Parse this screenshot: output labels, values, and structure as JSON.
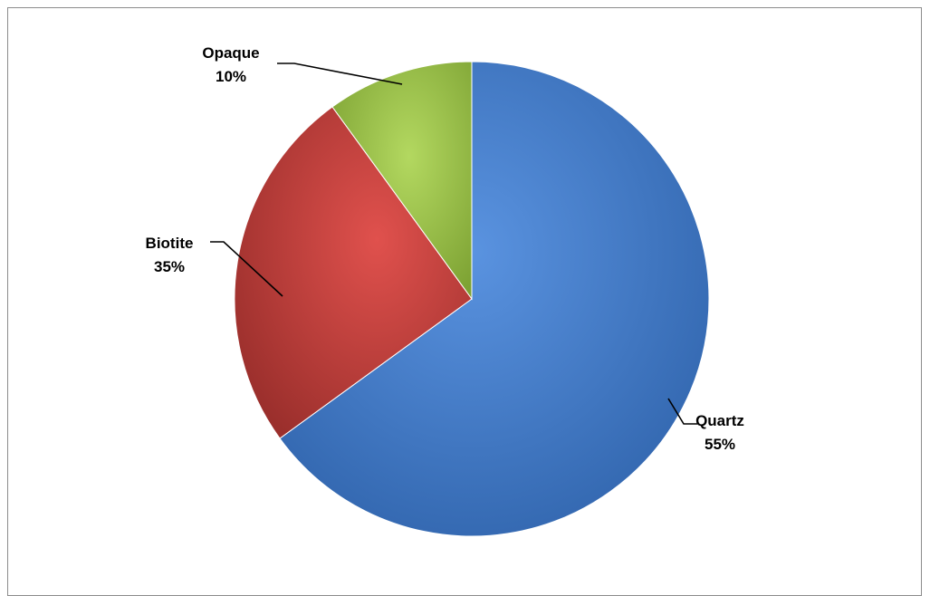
{
  "chart_data": {
    "type": "pie",
    "title": "",
    "slices": [
      {
        "label": "Quartz",
        "value": 55,
        "display": "55%",
        "color": "#4a7fcf"
      },
      {
        "label": "Opaque",
        "value": 10,
        "display": "10%",
        "color": "#98bf47"
      },
      {
        "label": "Biotite",
        "value": 35,
        "display": "35%",
        "color": "#c0413f"
      }
    ],
    "legend": "none",
    "labels": "outside with leader lines"
  }
}
